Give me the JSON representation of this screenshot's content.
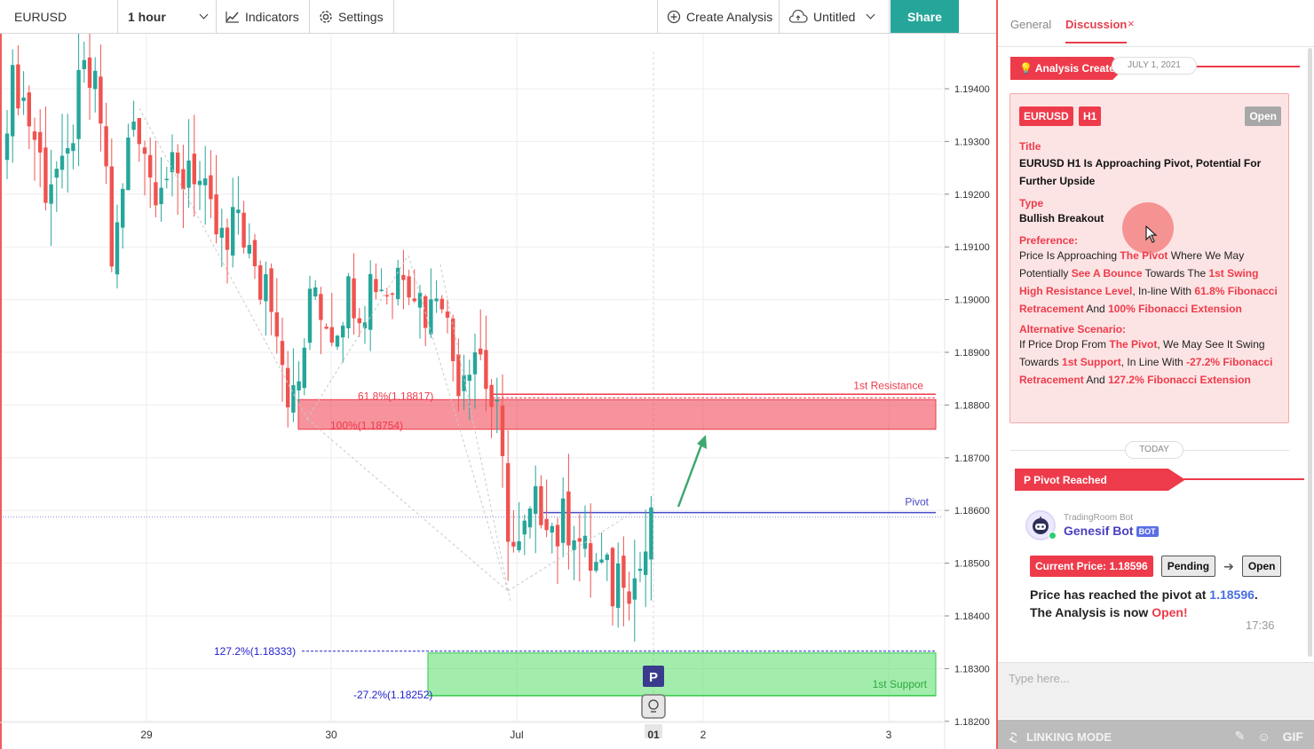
{
  "toolbar": {
    "symbol": "EURUSD",
    "interval": "1 hour",
    "indicators": "Indicators",
    "settings": "Settings",
    "create_analysis": "Create Analysis",
    "untitled": "Untitled",
    "share": "Share"
  },
  "chart": {
    "price_axis": [
      "1.19400",
      "1.19300",
      "1.19200",
      "1.19100",
      "1.19000",
      "1.18900",
      "1.18800",
      "1.18700",
      "1.18600",
      "1.18500",
      "1.18400",
      "1.18300",
      "1.18200"
    ],
    "time_axis": [
      "29",
      "30",
      "Jul",
      "01",
      "2",
      "3"
    ],
    "labels": {
      "resistance": "1st Resistance",
      "support": "1st Support",
      "pivot": "Pivot",
      "fib_618": "61.8%(1.18817)",
      "fib_100": "100%(1.18754)",
      "fib_1272": "127.2%(1.18333)",
      "fib_272": "-27.2%(1.18252)",
      "pivot_marker": "P"
    },
    "colors": {
      "bull": "#26a69a",
      "bear": "#ef5350",
      "resistance": "#ee3b4b",
      "support": "#35c94a",
      "pivot": "#4a4ac8",
      "fib_blue": "#2222cc"
    }
  },
  "chart_data": {
    "type": "candlestick",
    "symbol": "EURUSD",
    "timeframe": "1 hour",
    "ylim": [
      1.182,
      1.1953
    ],
    "levels": {
      "resistance_zone": [
        1.18754,
        1.18817
      ],
      "pivot": 1.18596,
      "support_zone": [
        1.18252,
        1.18333
      ],
      "fib_61_8": 1.18817,
      "fib_100": 1.18754,
      "fib_127_2": 1.18333,
      "fib_neg_27_2": 1.18252
    },
    "x_ticks": [
      "29",
      "30",
      "Jul",
      "2",
      "3"
    ],
    "close_path": [
      1.1937,
      1.1942,
      1.1936,
      1.193,
      1.1922,
      1.1925,
      1.1921,
      1.1935,
      1.1942,
      1.194,
      1.1932,
      1.1905,
      1.192,
      1.1935,
      1.1933,
      1.1922,
      1.1925,
      1.1923,
      1.1921,
      1.1928,
      1.1922,
      1.1915,
      1.1912,
      1.1908,
      1.1918,
      1.191,
      1.1901,
      1.1905,
      1.1898,
      1.1885,
      1.1879,
      1.1893,
      1.1903,
      1.1897,
      1.1895,
      1.19,
      1.1902,
      1.1899,
      1.1905,
      1.1903,
      1.1902,
      1.1908,
      1.1905,
      1.19,
      1.1897,
      1.1907,
      1.1891,
      1.1886,
      1.189,
      1.1892,
      1.1883,
      1.1876,
      1.1859,
      1.185,
      1.1856,
      1.186,
      1.1862,
      1.1855,
      1.1858,
      1.1858,
      1.1851,
      1.185,
      1.1848,
      1.1845,
      1.1851,
      1.1846,
      1.185,
      1.1856
    ],
    "projection": "bounce from pivot towards 1st Resistance"
  },
  "panel": {
    "tabs": {
      "general": "General",
      "discussion": "Discussion",
      "close": "×"
    },
    "analysis_banner": "Analysis Created",
    "analysis_date": "JULY 1, 2021",
    "card": {
      "symbol_tag": "EURUSD",
      "tf_tag": "H1",
      "status": "Open",
      "title_label": "Title",
      "title": "EURUSD H1 Is Approaching Pivot, Potential For Further Upside",
      "type_label": "Type",
      "type": "Bullish Breakout",
      "preference_label": "Preference:",
      "pref": {
        "t1": "Price Is Approaching ",
        "h1": "The Pivot",
        "t2": " Where We May Potentially ",
        "h2": "See A Bounce",
        "t3": " Towards The ",
        "h3": "1st Swing High Resistance Level",
        "t4": ", In-line With ",
        "h4": "61.8% Fibonacci Retracement",
        "t5": " And ",
        "h5": "100% Fibonacci Extension"
      },
      "alt_label": "Alternative Scenario:",
      "alt": {
        "t1": "If Price Drop From ",
        "h1": "The Pivot",
        "t2": ", We May See It Swing Towards ",
        "h2": "1st Support",
        "t3": ", In Line With ",
        "h3": "-27.2% Fibonacci Retracement",
        "t4": " And ",
        "h4": "127.2% Fibonacci Extension"
      }
    },
    "today": "TODAY",
    "pivot_banner": "Pivot Reached",
    "bot": {
      "org": "TradingRoom Bot",
      "name": "Genesif Bot",
      "tag": "BOT",
      "current_price": "Current Price: 1.18596",
      "state_from": "Pending",
      "state_to": "Open",
      "msg_1": "Price has reached the pivot at ",
      "msg_price": "1.18596",
      "msg_2": ". The Analysis is now ",
      "msg_status": "Open!",
      "time": "17:36"
    },
    "input_placeholder": "Type here...",
    "linking_mode": "LINKING MODE",
    "gif": "GIF"
  }
}
